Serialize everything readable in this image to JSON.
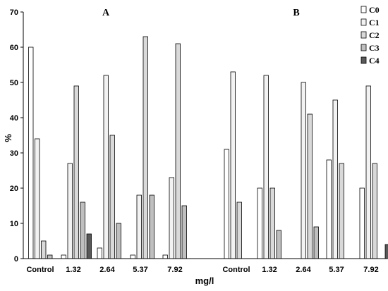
{
  "chart_data": {
    "type": "bar",
    "ylabel": "%",
    "xlabel": "mg/l",
    "ylim": [
      0,
      70
    ],
    "yticks": [
      0,
      10,
      20,
      30,
      40,
      50,
      60,
      70
    ],
    "legend_position": "top-right",
    "series_meta": [
      {
        "name": "C0",
        "color": "#ffffff"
      },
      {
        "name": "C1",
        "color": "#f2f2f2"
      },
      {
        "name": "C2",
        "color": "#d9d9d9"
      },
      {
        "name": "C3",
        "color": "#bfbfbf"
      },
      {
        "name": "C4",
        "color": "#595959"
      }
    ],
    "panels": [
      {
        "label": "A",
        "categories": [
          "Control",
          "1.32",
          "2.64",
          "5.37",
          "7.92"
        ],
        "series": [
          {
            "name": "C0",
            "values": [
              60,
              1,
              3,
              1,
              1
            ]
          },
          {
            "name": "C1",
            "values": [
              34,
              27,
              52,
              18,
              23
            ]
          },
          {
            "name": "C2",
            "values": [
              5,
              49,
              35,
              63,
              61
            ]
          },
          {
            "name": "C3",
            "values": [
              1,
              16,
              10,
              18,
              15
            ]
          },
          {
            "name": "C4",
            "values": [
              0,
              7,
              0,
              0,
              0
            ]
          }
        ]
      },
      {
        "label": "B",
        "categories": [
          "Control",
          "1.32",
          "2.64",
          "5.37",
          "7.92"
        ],
        "series": [
          {
            "name": "C0",
            "values": [
              31,
              20,
              0,
              28,
              20
            ]
          },
          {
            "name": "C1",
            "values": [
              53,
              52,
              50,
              45,
              49
            ]
          },
          {
            "name": "C2",
            "values": [
              16,
              20,
              41,
              27,
              27
            ]
          },
          {
            "name": "C3",
            "values": [
              0,
              8,
              9,
              0,
              0
            ]
          },
          {
            "name": "C4",
            "values": [
              0,
              0,
              0,
              0,
              4
            ]
          }
        ]
      }
    ]
  }
}
